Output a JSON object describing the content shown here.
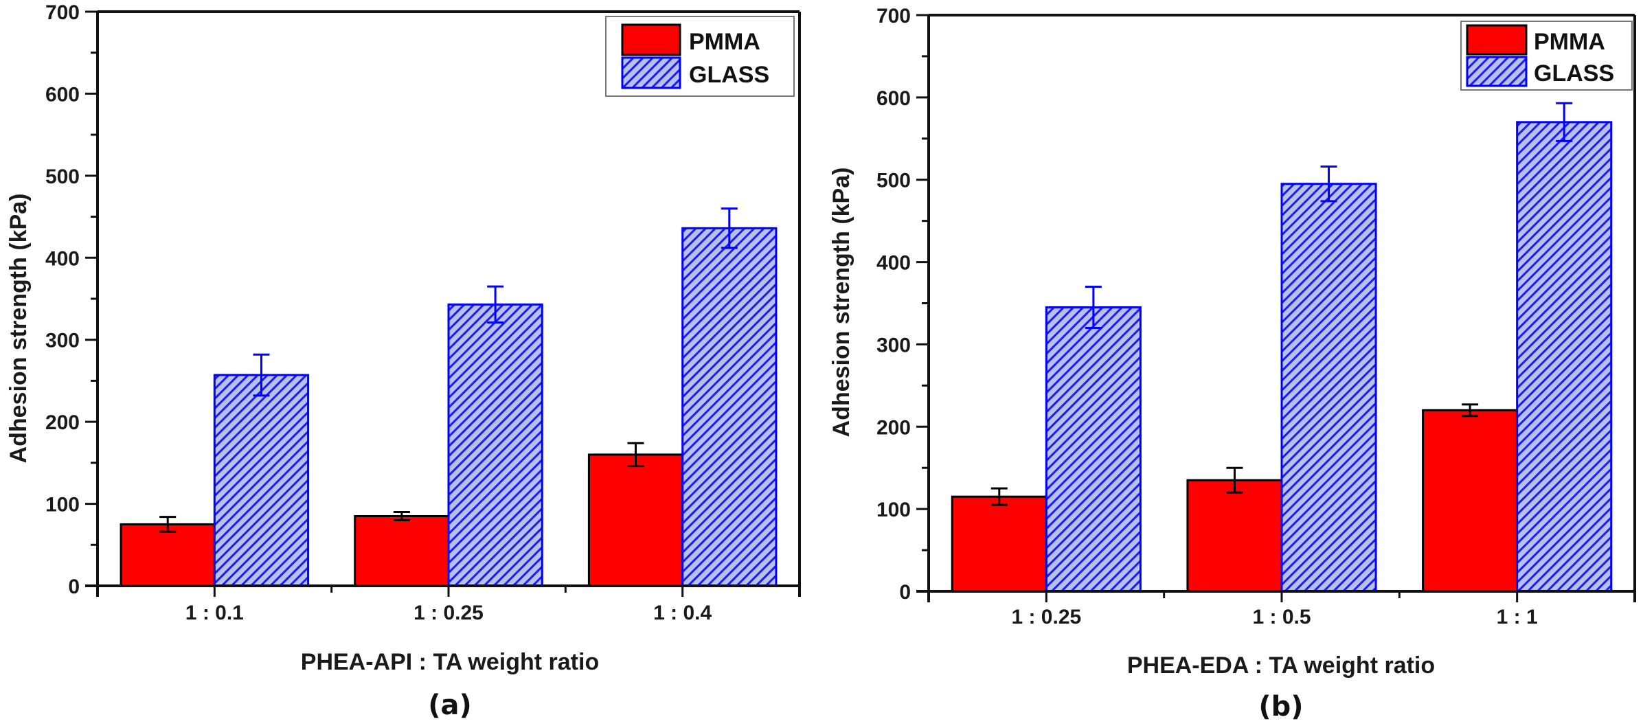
{
  "chart_data": [
    {
      "type": "bar",
      "panel_label": "(a)",
      "title": "",
      "xlabel": "PHEA-API : TA weight ratio",
      "ylabel": "Adhesion strength (kPa)",
      "ylim": [
        0,
        700
      ],
      "yticks": [
        0,
        100,
        200,
        300,
        400,
        500,
        600,
        700
      ],
      "ytick_minor_step": 50,
      "grid": false,
      "legend_position": "top-right",
      "categories": [
        "1 : 0.1",
        "1 : 0.25",
        "1 : 0.4"
      ],
      "series": [
        {
          "name": "PMMA",
          "color": "#ff0000",
          "pattern": "solid",
          "error_color": "#000000",
          "values": [
            75,
            85,
            160
          ],
          "errors": [
            9,
            5,
            14
          ]
        },
        {
          "name": "GLASS",
          "color": "#0000ff",
          "pattern": "diagonal-hatch",
          "error_color": "#0000ff",
          "values": [
            257,
            343,
            436
          ],
          "errors": [
            25,
            22,
            24
          ]
        }
      ]
    },
    {
      "type": "bar",
      "panel_label": "(b)",
      "title": "",
      "xlabel": "PHEA-EDA : TA weight ratio",
      "ylabel": "Adhesion strength (kPa)",
      "ylim": [
        0,
        700
      ],
      "yticks": [
        0,
        100,
        200,
        300,
        400,
        500,
        600,
        700
      ],
      "ytick_minor_step": 50,
      "grid": false,
      "legend_position": "top-right",
      "categories": [
        "1 : 0.25",
        "1 : 0.5",
        "1 : 1"
      ],
      "series": [
        {
          "name": "PMMA",
          "color": "#ff0000",
          "pattern": "solid",
          "error_color": "#000000",
          "values": [
            115,
            135,
            220
          ],
          "errors": [
            10,
            15,
            7
          ]
        },
        {
          "name": "GLASS",
          "color": "#0000ff",
          "pattern": "diagonal-hatch",
          "error_color": "#0000ff",
          "values": [
            345,
            495,
            570
          ],
          "errors": [
            25,
            21,
            23
          ]
        }
      ]
    }
  ]
}
